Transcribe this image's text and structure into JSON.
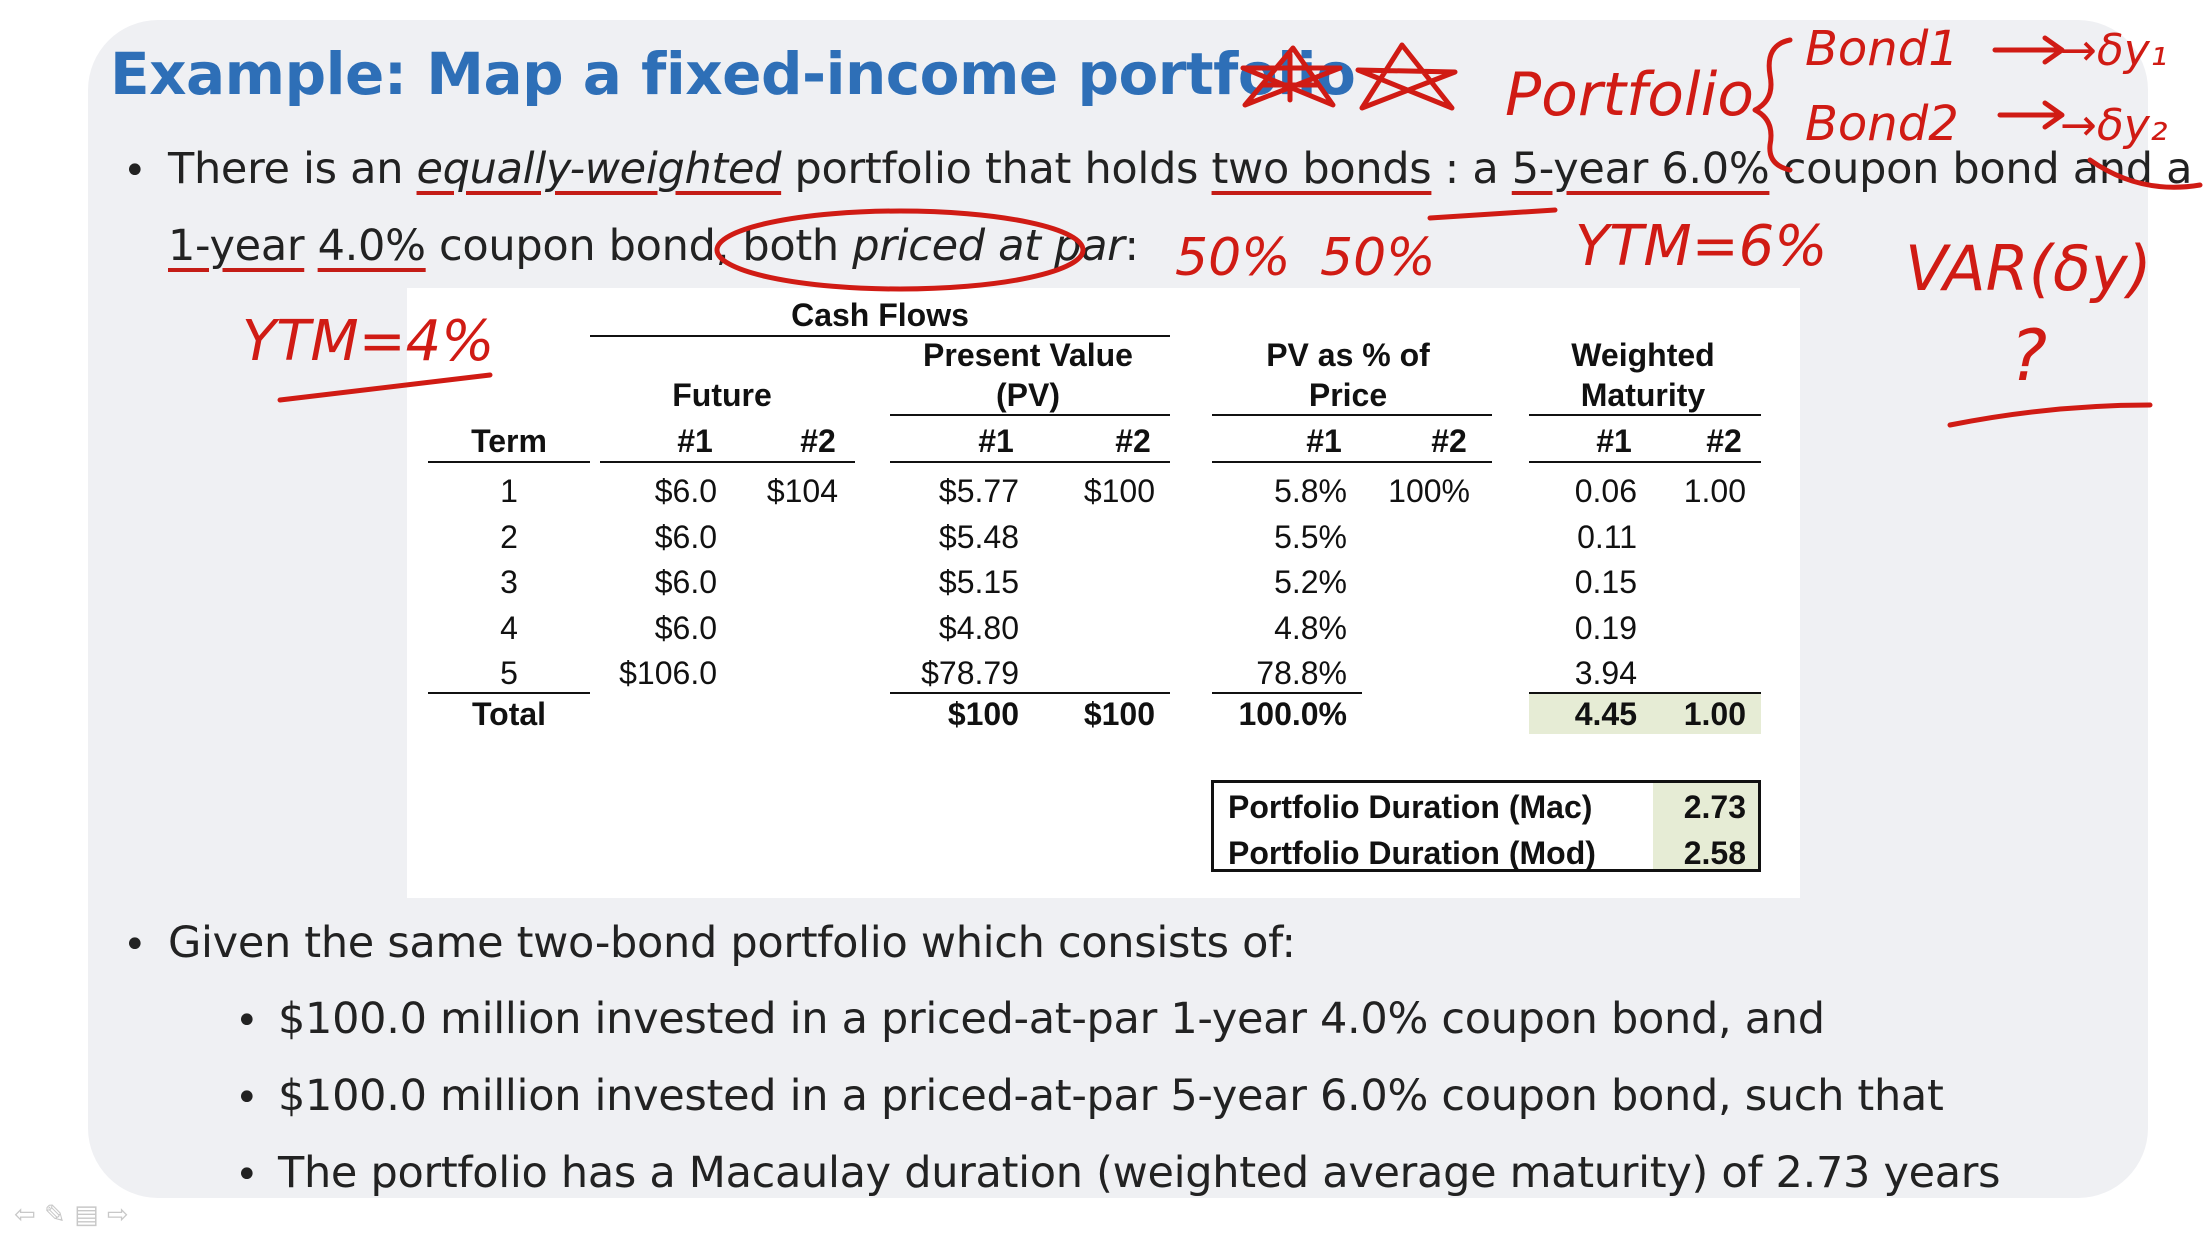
{
  "slide": {
    "title": "Example: Map a fixed-income portfolio",
    "bullet_char": "•",
    "para1": {
      "a": "There is an ",
      "b": "equally-weighted",
      "c": " portfolio that holds ",
      "d": "two bonds",
      "e": " : a ",
      "f": "5-year 6.0%",
      "g": " coupon bond and a",
      "h": "1-year",
      "i": " ",
      "j": "4.0%",
      "k": " coupon bond, both ",
      "l": "priced at par",
      "m": ":"
    },
    "para2": "Given the same two-bond portfolio which consists of:",
    "sub_bullets": [
      "$100.0 million invested in a priced-at-par 1-year 4.0% coupon bond, and",
      "$100.0 million invested in a priced-at-par 5-year 6.0% coupon bond, such that",
      "The portfolio has a Macaulay duration (weighted average maturity) of 2.73 years"
    ]
  },
  "table": {
    "header": {
      "cash_flows": "Cash Flows",
      "future": "Future",
      "pv_line1": "Present Value",
      "pv_line2": "(PV)",
      "pct_line1": "PV as % of",
      "pct_line2": "Price",
      "wm_line1": "Weighted",
      "wm_line2": "Maturity",
      "term": "Term",
      "n1": "#1",
      "n2": "#2"
    },
    "rows": [
      {
        "term": "1",
        "f1": "$6.0",
        "f2": "$104",
        "pv1": "$5.77",
        "pv2": "$100",
        "pct1": "5.8%",
        "pct2": "100%",
        "wm1": "0.06",
        "wm2": "1.00"
      },
      {
        "term": "2",
        "f1": "$6.0",
        "f2": "",
        "pv1": "$5.48",
        "pv2": "",
        "pct1": "5.5%",
        "pct2": "",
        "wm1": "0.11",
        "wm2": ""
      },
      {
        "term": "3",
        "f1": "$6.0",
        "f2": "",
        "pv1": "$5.15",
        "pv2": "",
        "pct1": "5.2%",
        "pct2": "",
        "wm1": "0.15",
        "wm2": ""
      },
      {
        "term": "4",
        "f1": "$6.0",
        "f2": "",
        "pv1": "$4.80",
        "pv2": "",
        "pct1": "4.8%",
        "pct2": "",
        "wm1": "0.19",
        "wm2": ""
      },
      {
        "term": "5",
        "f1": "$106.0",
        "f2": "",
        "pv1": "$78.79",
        "pv2": "",
        "pct1": "78.8%",
        "pct2": "",
        "wm1": "3.94",
        "wm2": ""
      }
    ],
    "total": {
      "label": "Total",
      "pv1": "$100",
      "pv2": "$100",
      "pct1": "100.0%",
      "wm1": "4.45",
      "wm2": "1.00"
    },
    "duration": [
      {
        "label": "Portfolio Duration (Mac)",
        "value": "2.73"
      },
      {
        "label": "Portfolio Duration (Mod)",
        "value": "2.58"
      }
    ]
  },
  "annotations": {
    "color": "#d01b14",
    "portfolio": "Portfolio",
    "bond1": "Bond1",
    "bond2": "Bond2",
    "dy1": "→δy₁",
    "dy2": "→δy₂",
    "var": "VAR(δy)",
    "q": "?",
    "pct1": "50%",
    "pct2": "50%",
    "ytm6": "YTM=6%",
    "ytm4": "YTM=4%"
  },
  "footer": {
    "icons": "⇦ ✎ ▤ ⇨"
  }
}
